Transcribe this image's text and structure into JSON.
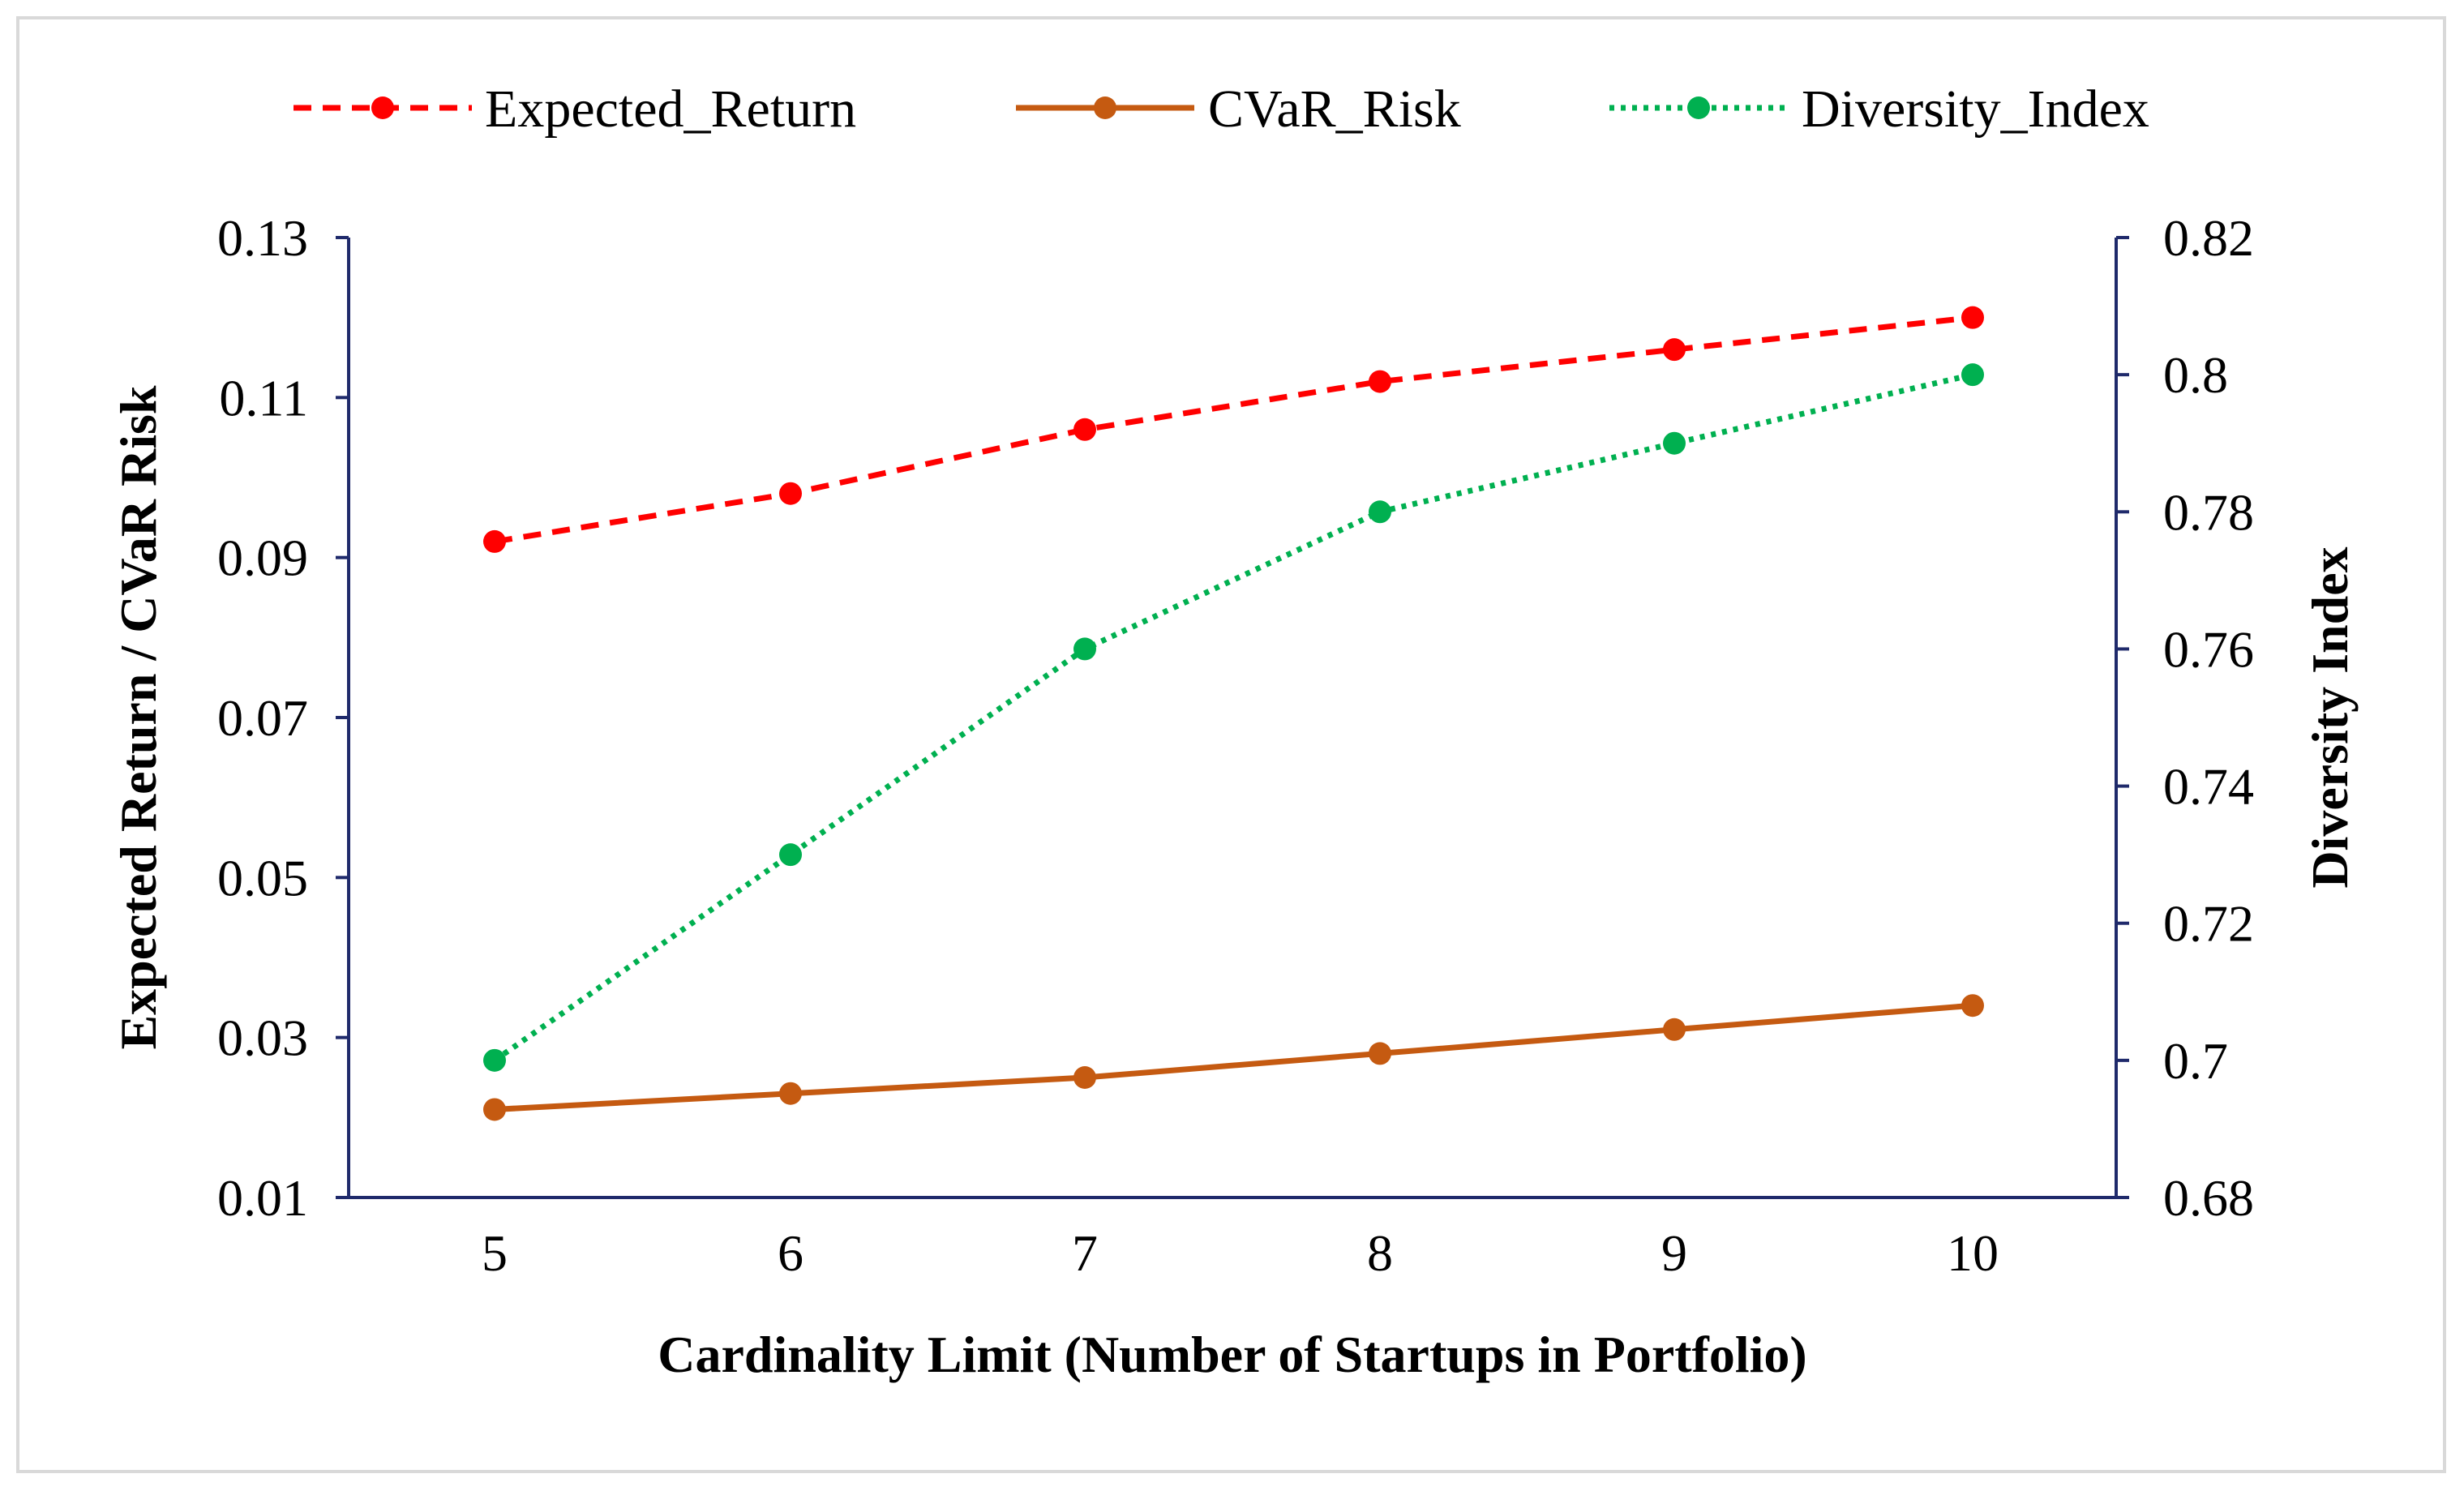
{
  "chart_data": {
    "type": "line",
    "x": [
      5,
      6,
      7,
      8,
      9,
      10
    ],
    "xlabel": "Cardinality Limit (Number of Startups in Portfolio)",
    "ylabel": "Expected Return / CVaR Risk",
    "y2label": "Diversity Index",
    "ylim": [
      0.01,
      0.13
    ],
    "y2lim": [
      0.68,
      0.82
    ],
    "yticks": [
      "0.01",
      "0.03",
      "0.05",
      "0.07",
      "0.09",
      "0.11",
      "0.13"
    ],
    "y2ticks": [
      "0.68",
      "0.7",
      "0.72",
      "0.74",
      "0.76",
      "0.78",
      "0.8",
      "0.82"
    ],
    "xticks": [
      "5",
      "6",
      "7",
      "8",
      "9",
      "10"
    ],
    "grid": false,
    "legend_position": "top",
    "axis_color": "#1f2a6b",
    "series": [
      {
        "name": "Expected_Return",
        "axis": "left",
        "style": "dashed",
        "color": "#ff0000",
        "values": [
          0.092,
          0.098,
          0.106,
          0.112,
          0.116,
          0.12
        ]
      },
      {
        "name": "CVaR_Risk",
        "axis": "left",
        "style": "solid",
        "color": "#c55a11",
        "values": [
          0.021,
          0.023,
          0.025,
          0.028,
          0.031,
          0.034
        ]
      },
      {
        "name": "Diversity_Index",
        "axis": "right",
        "style": "dotted",
        "color": "#00b050",
        "values": [
          0.7,
          0.73,
          0.76,
          0.78,
          0.79,
          0.8
        ]
      }
    ]
  }
}
